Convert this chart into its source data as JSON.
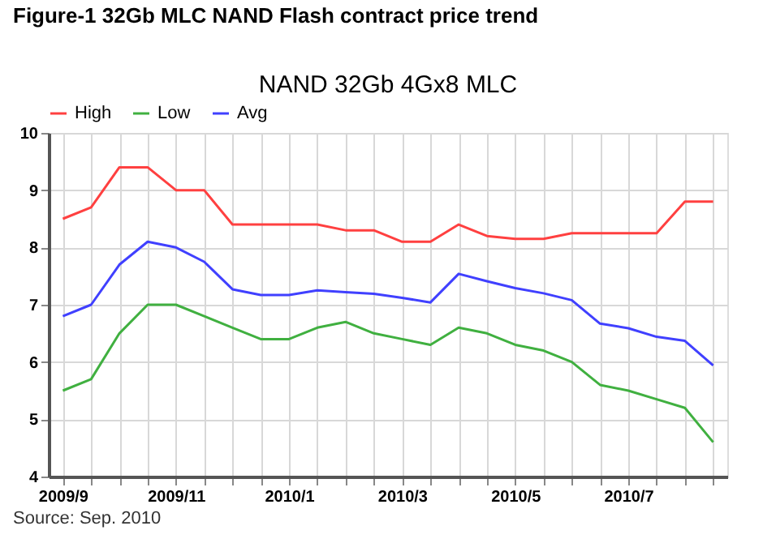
{
  "chart_data": {
    "type": "line",
    "title": "Figure-1  32Gb MLC NAND Flash contract price trend",
    "subtitle": "NAND 32Gb 4Gx8   MLC",
    "categories": [
      "2009/9",
      null,
      null,
      null,
      "2009/11",
      null,
      null,
      null,
      "2010/1",
      null,
      null,
      null,
      "2010/3",
      null,
      null,
      null,
      "2010/5",
      null,
      null,
      null,
      "2010/7",
      null,
      null,
      null
    ],
    "series": [
      {
        "name": "High",
        "color": "#ff4040",
        "values": [
          8.5,
          8.7,
          9.4,
          9.4,
          9.0,
          9.0,
          8.4,
          8.4,
          8.4,
          8.4,
          8.3,
          8.3,
          8.1,
          8.1,
          8.4,
          8.2,
          8.15,
          8.15,
          8.25,
          8.25,
          8.25,
          8.25,
          8.8,
          8.8
        ]
      },
      {
        "name": "Low",
        "color": "#40b040",
        "values": [
          5.5,
          5.7,
          6.5,
          7.0,
          7.0,
          6.8,
          6.6,
          6.4,
          6.4,
          6.6,
          6.7,
          6.5,
          6.4,
          6.3,
          6.6,
          6.5,
          6.3,
          6.2,
          6.0,
          5.6,
          5.5,
          5.35,
          5.2,
          4.6
        ]
      },
      {
        "name": "Avg",
        "color": "#4040ff",
        "values": [
          6.8,
          7.0,
          7.7,
          8.1,
          8.0,
          7.75,
          7.27,
          7.17,
          7.17,
          7.25,
          7.22,
          7.19,
          7.12,
          7.04,
          7.54,
          7.41,
          7.29,
          7.2,
          7.08,
          6.67,
          6.59,
          6.44,
          6.37,
          5.94
        ]
      }
    ],
    "ylim": [
      4,
      10
    ],
    "yticks": [
      4,
      5,
      6,
      7,
      8,
      9,
      10
    ],
    "grid": true,
    "legend": "top left",
    "marker": "none",
    "line_style": "solid",
    "annotations": [
      "Source: Sep. 2010"
    ]
  }
}
